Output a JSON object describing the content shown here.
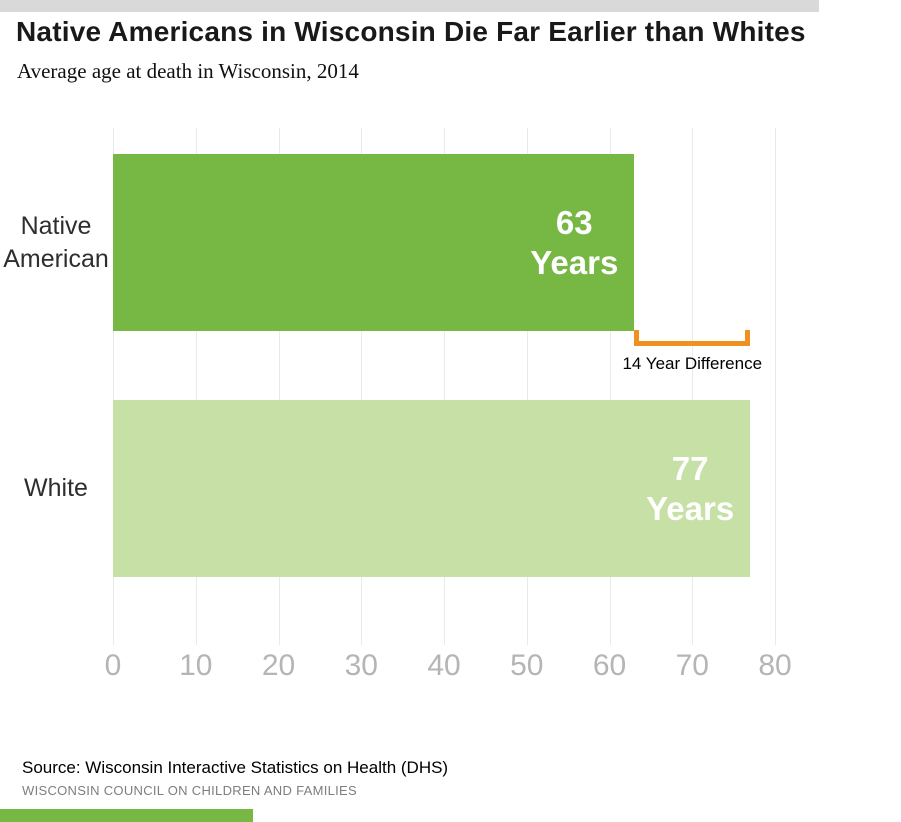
{
  "header": {
    "title": "Native Americans in Wisconsin Die Far Earlier than Whites",
    "subtitle": "Average age at death in Wisconsin, 2014"
  },
  "chart_data": {
    "type": "bar",
    "orientation": "horizontal",
    "title": "Native Americans in Wisconsin Die Far Earlier than Whites",
    "subtitle": "Average age at death in Wisconsin, 2014",
    "xlabel": "",
    "ylabel": "",
    "xlim": [
      0,
      80
    ],
    "x_ticks": [
      0,
      10,
      20,
      30,
      40,
      50,
      60,
      70,
      80
    ],
    "grid": true,
    "legend": "none",
    "categories": [
      "Native American",
      "White"
    ],
    "values": [
      63,
      77
    ],
    "bars": [
      {
        "category": "Native American",
        "value": 63,
        "value_label": "63",
        "unit_label": "Years",
        "color": "#76b843"
      },
      {
        "category": "White",
        "value": 77,
        "value_label": "77",
        "unit_label": "Years",
        "color": "#c6e0a5"
      }
    ],
    "annotation": {
      "label": "14 Year Difference",
      "from_value": 63,
      "to_value": 77,
      "color": "#ef9120"
    },
    "colors": {
      "gridline": "#eaeaea",
      "tick_label": "#b5b5b5",
      "bar_value_text": "#ffffff",
      "accent_strip_top": "#d9d9d9",
      "accent_strip_bottom": "#76b843"
    }
  },
  "footer": {
    "source": "Source: Wisconsin Interactive Statistics on Health (DHS)",
    "org": "WISCONSIN COUNCIL ON CHILDREN AND FAMILIES"
  }
}
